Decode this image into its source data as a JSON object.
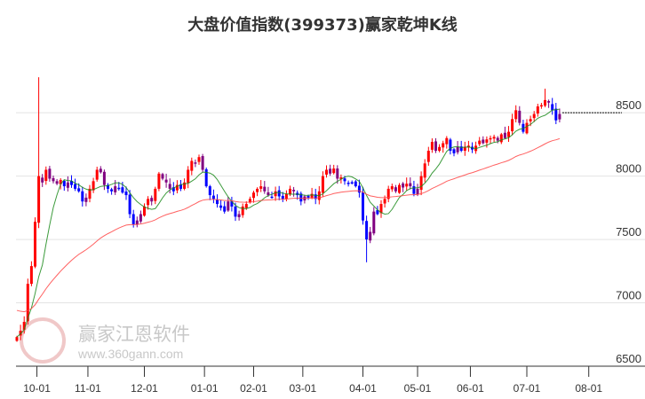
{
  "chart_data": {
    "type": "candlestick",
    "title": "大盘价值指数(399373)赢家乾坤K线",
    "ylim": [
      6500,
      8970
    ],
    "yticks": [
      6500,
      7000,
      7500,
      8000,
      8500
    ],
    "xticks": [
      "10-01",
      "11-01",
      "12-01",
      "01-01",
      "02-01",
      "03-01",
      "04-01",
      "05-01",
      "06-01",
      "07-01",
      "08-01"
    ],
    "xtick_index": [
      5.5,
      19.5,
      35,
      51.5,
      65,
      78.5,
      95,
      110,
      124.5,
      140,
      157
    ],
    "last_price_line": 8500,
    "closes": [
      6730,
      6780,
      6850,
      7150,
      7290,
      7640,
      8000,
      7950,
      8050,
      7980,
      7960,
      7940,
      7970,
      7920,
      7950,
      7930,
      7900,
      7880,
      7800,
      7830,
      7900,
      7960,
      8050,
      8030,
      7930,
      7900,
      7880,
      7920,
      7900,
      7870,
      7850,
      7700,
      7620,
      7650,
      7700,
      7760,
      7820,
      7800,
      7900,
      8020,
      7980,
      7950,
      7900,
      7880,
      7930,
      7900,
      7950,
      8050,
      8120,
      8100,
      8150,
      8050,
      7920,
      7850,
      7820,
      7780,
      7750,
      7720,
      7800,
      7760,
      7680,
      7700,
      7760,
      7780,
      7820,
      7870,
      7900,
      7920,
      7880,
      7850,
      7830,
      7880,
      7840,
      7820,
      7860,
      7900,
      7880,
      7850,
      7800,
      7840,
      7830,
      7860,
      7820,
      7880,
      8000,
      8050,
      8020,
      8060,
      7980,
      7990,
      7960,
      7940,
      7950,
      7920,
      7870,
      7650,
      7500,
      7560,
      7720,
      7700,
      7780,
      7820,
      7900,
      7920,
      7880,
      7930,
      7910,
      7940,
      7920,
      7860,
      7900,
      8000,
      8100,
      8200,
      8270,
      8200,
      8230,
      8260,
      8300,
      8200,
      8180,
      8230,
      8200,
      8230,
      8240,
      8210,
      8240,
      8280,
      8260,
      8290,
      8300,
      8310,
      8280,
      8330,
      8300,
      8350,
      8450,
      8520,
      8420,
      8350,
      8420,
      8450,
      8490,
      8550,
      8560,
      8600,
      8580,
      8520,
      8440,
      8490
    ],
    "first_open": 6700,
    "high_overrides": {
      "6": 8780,
      "145": 8690
    },
    "low_overrides": {
      "96": 7320
    },
    "series": [
      {
        "name": "short-ma",
        "color": "#1a8a1a",
        "period": 8
      },
      {
        "name": "long-ma",
        "color": "#ff4444",
        "period": 45
      }
    ],
    "candle_colors": {
      "up": "#ff0000",
      "down": "#0000ff",
      "neutral": "#800080"
    }
  },
  "watermark": {
    "brand": "赢家江恩软件",
    "url": "www.360gann.com",
    "seal": "江赢恩家"
  }
}
